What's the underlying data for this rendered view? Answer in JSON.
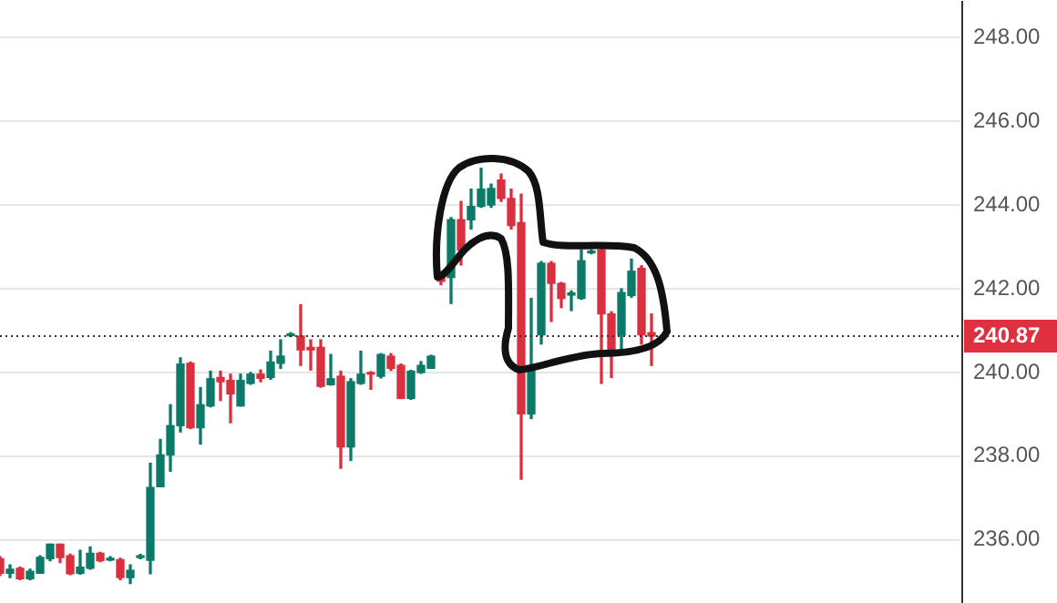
{
  "chart_data": {
    "type": "candlestick",
    "categories": [
      null,
      null,
      null,
      null,
      null,
      null,
      null,
      null,
      null,
      null,
      null,
      null,
      null,
      null,
      null,
      null,
      null,
      null,
      null,
      null,
      null,
      null,
      null,
      null,
      null,
      null,
      null,
      null,
      null,
      null,
      null,
      null,
      null,
      null,
      null,
      null,
      null,
      null,
      null,
      null,
      null,
      null,
      null,
      null,
      null,
      null,
      null,
      null,
      null,
      null,
      null,
      null,
      null,
      null,
      null,
      null,
      null,
      null,
      null,
      null,
      null,
      null,
      null,
      null,
      null,
      null,
      null,
      null,
      null,
      null,
      null,
      null,
      null,
      null,
      null,
      null,
      null,
      null,
      null,
      null,
      null,
      null,
      null,
      null,
      null,
      null,
      null,
      null,
      null,
      null,
      null,
      null,
      null,
      null,
      null,
      null,
      null
    ],
    "ohlc": [
      [
        235.55,
        235.6,
        235.15,
        235.2
      ],
      [
        235.2,
        235.4,
        235.1,
        235.3
      ],
      [
        235.32,
        235.35,
        235.05,
        235.07
      ],
      [
        235.07,
        235.3,
        235.05,
        235.25
      ],
      [
        235.2,
        235.62,
        235.2,
        235.58
      ],
      [
        235.55,
        235.9,
        235.5,
        235.9
      ],
      [
        235.9,
        235.9,
        235.46,
        235.58
      ],
      [
        235.62,
        235.66,
        235.17,
        235.19
      ],
      [
        235.2,
        235.75,
        235.18,
        235.35
      ],
      [
        235.32,
        235.83,
        235.3,
        235.68
      ],
      [
        235.68,
        235.7,
        235.48,
        235.5
      ],
      [
        235.52,
        235.6,
        235.5,
        235.56
      ],
      [
        235.53,
        235.56,
        235.05,
        235.1
      ],
      [
        235.1,
        235.4,
        234.96,
        235.27
      ],
      [
        235.58,
        235.65,
        235.55,
        235.62
      ],
      [
        235.51,
        237.83,
        235.19,
        237.25
      ],
      [
        237.27,
        238.4,
        237.27,
        238.03
      ],
      [
        238.03,
        239.23,
        237.64,
        238.73
      ],
      [
        238.73,
        240.35,
        238.58,
        240.2
      ],
      [
        240.22,
        240.25,
        238.66,
        238.68
      ],
      [
        238.68,
        239.64,
        238.29,
        239.23
      ],
      [
        239.2,
        240.03,
        239.18,
        239.85
      ],
      [
        239.88,
        240.03,
        239.33,
        239.78
      ],
      [
        239.81,
        239.96,
        238.8,
        239.49
      ],
      [
        239.2,
        239.96,
        239.2,
        239.81
      ],
      [
        239.74,
        240.0,
        239.72,
        239.96
      ],
      [
        239.96,
        240.06,
        239.78,
        239.86
      ],
      [
        239.88,
        240.51,
        239.84,
        240.25
      ],
      [
        240.22,
        240.78,
        240.1,
        240.39
      ],
      [
        240.88,
        240.95,
        240.86,
        240.92
      ],
      [
        240.87,
        241.62,
        240.17,
        240.54
      ],
      [
        240.6,
        240.78,
        240.06,
        240.54
      ],
      [
        240.6,
        240.78,
        239.65,
        239.67
      ],
      [
        239.71,
        240.43,
        239.7,
        239.85
      ],
      [
        239.91,
        240.03,
        237.71,
        238.22
      ],
      [
        238.22,
        239.85,
        237.9,
        239.78
      ],
      [
        239.74,
        240.51,
        239.72,
        239.96
      ],
      [
        240.0,
        240.02,
        239.6,
        239.96
      ],
      [
        239.91,
        240.45,
        239.87,
        240.43
      ],
      [
        240.39,
        240.45,
        240.05,
        240.1
      ],
      [
        240.17,
        240.2,
        239.38,
        239.38
      ],
      [
        239.38,
        240.05,
        239.36,
        240.03
      ],
      [
        240.0,
        240.26,
        239.98,
        240.17
      ],
      [
        240.1,
        240.41,
        240.1,
        240.39
      ],
      [
        242.3,
        242.35,
        242.1,
        242.18
      ],
      [
        242.27,
        243.7,
        241.65,
        243.65
      ],
      [
        243.65,
        244.09,
        242.57,
        242.93
      ],
      [
        243.65,
        244.38,
        243.43,
        243.97
      ],
      [
        243.97,
        244.88,
        243.95,
        244.38
      ],
      [
        244.0,
        244.5,
        243.95,
        244.4
      ],
      [
        244.6,
        244.74,
        244.09,
        244.16
      ],
      [
        244.16,
        244.38,
        243.43,
        243.51
      ],
      [
        243.58,
        244.26,
        237.45,
        239.01
      ],
      [
        239.01,
        241.77,
        238.9,
        240.03
      ],
      [
        240.9,
        242.65,
        240.68,
        242.61
      ],
      [
        242.61,
        242.65,
        241.22,
        242.13
      ],
      [
        242.13,
        242.15,
        241.55,
        241.77
      ],
      [
        241.85,
        241.95,
        241.48,
        241.9
      ],
      [
        241.77,
        242.93,
        241.75,
        242.67
      ],
      [
        242.86,
        242.93,
        242.84,
        242.9
      ],
      [
        242.93,
        243.0,
        239.74,
        241.4
      ],
      [
        241.4,
        241.45,
        239.88,
        240.47
      ],
      [
        240.9,
        242.0,
        240.54,
        241.91
      ],
      [
        241.84,
        242.71,
        241.8,
        242.42
      ],
      [
        242.49,
        242.55,
        240.68,
        240.9
      ],
      [
        240.95,
        241.4,
        240.17,
        240.87
      ],
      null,
      null,
      null,
      null,
      null,
      null,
      null,
      null,
      null,
      null,
      null,
      null,
      null,
      null,
      null,
      null,
      null,
      null,
      null,
      null,
      null,
      null,
      null,
      null,
      null,
      null,
      null,
      null,
      null,
      null,
      null
    ],
    "colors": [
      "#d9303f",
      "#0b7a68",
      "#d9303f",
      "#0b7a68",
      "#0b7a68",
      "#0b7a68",
      "#d9303f",
      "#d9303f",
      "#0b7a68",
      "#0b7a68",
      "#d9303f",
      "#0b7a68",
      "#d9303f",
      "#0b7a68",
      "#0b7a68",
      "#0b7a68",
      "#0b7a68",
      "#0b7a68",
      "#0b7a68",
      "#d9303f",
      "#0b7a68",
      "#0b7a68",
      "#d9303f",
      "#d9303f",
      "#0b7a68",
      "#0b7a68",
      "#d9303f",
      "#0b7a68",
      "#0b7a68",
      "#0b7a68",
      "#d9303f",
      "#d9303f",
      "#d9303f",
      "#0b7a68",
      "#d9303f",
      "#0b7a68",
      "#0b7a68",
      "#d9303f",
      "#0b7a68",
      "#d9303f",
      "#d9303f",
      "#0b7a68",
      "#0b7a68",
      "#0b7a68",
      "#d9303f",
      "#0b7a68",
      "#d9303f",
      "#0b7a68",
      "#0b7a68",
      "#0b7a68",
      "#d9303f",
      "#d9303f",
      "#d9303f",
      "#0b7a68",
      "#0b7a68",
      "#d9303f",
      "#d9303f",
      "#0b7a68",
      "#0b7a68",
      "#0b7a68",
      "#d9303f",
      "#d9303f",
      "#0b7a68",
      "#0b7a68",
      "#d9303f",
      "#d9303f",
      null,
      null,
      null,
      null,
      null,
      null,
      null,
      null,
      null,
      null,
      null,
      null,
      null,
      null,
      null,
      null,
      null,
      null,
      null,
      null,
      null,
      null,
      null,
      null,
      null,
      null,
      null,
      null,
      null,
      null,
      null
    ],
    "ylim": [
      234.5,
      248.85
    ],
    "yticks": [
      {
        "value": 236,
        "label": "236.00"
      },
      {
        "value": 238,
        "label": "238.00"
      },
      {
        "value": 240,
        "label": "240.00"
      },
      {
        "value": 242,
        "label": "242.00"
      },
      {
        "value": 244,
        "label": "244.00"
      },
      {
        "value": 246,
        "label": "246.00"
      },
      {
        "value": 248,
        "label": "248.00"
      }
    ],
    "ref_lines": [
      {
        "axis": "y",
        "value": 240.87,
        "label": "240.87",
        "color": "#333333",
        "line_style": "dotted"
      }
    ],
    "grid": "y",
    "tick_labels": "y"
  }
}
